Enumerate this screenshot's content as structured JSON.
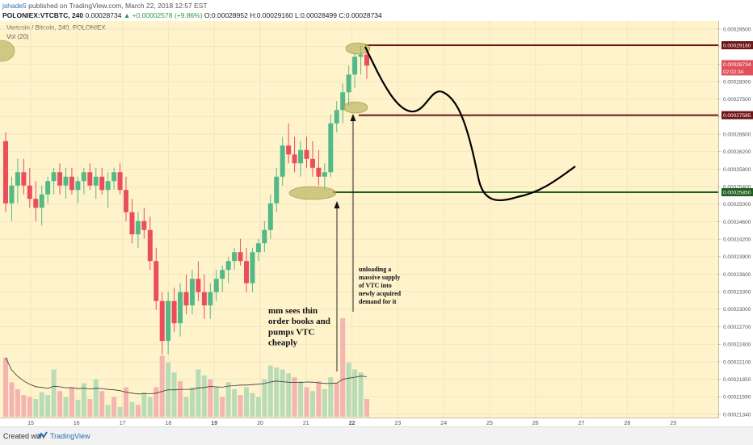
{
  "header": {
    "user": "jshade5",
    "published": "published on TradingView.com, March 22, 2018 12:57 EST",
    "symbol_line": "POLONIEX:VTCBTC, 240",
    "last": "0.00028734",
    "change": "▲ +0.00002578 (+9.86%)",
    "open": "O:0.00028952",
    "high": "H:0.00029160",
    "low": "L:0.00028499",
    "close": "C:0.00028734"
  },
  "pane": {
    "title": "Vertcoin / Bitcoin, 240, POLONIEX",
    "volume_label": "Vol (20)"
  },
  "footer": {
    "created_with": "Created with",
    "brand": "TradingView"
  },
  "chart_data": {
    "type": "candlestick",
    "x_tick_labels": [
      "15",
      "16",
      "17",
      "18",
      "19",
      "20",
      "21",
      "22",
      "23",
      "24",
      "25",
      "26",
      "27",
      "28",
      "29"
    ],
    "bold_x_ticks": [
      "19",
      "22"
    ],
    "y_tick_labels": [
      "0.00029500",
      "0.00029000",
      "0.00028500",
      "0.00028000",
      "0.00027500",
      "0.00027000",
      "0.00026600",
      "0.00026200",
      "0.00025800",
      "0.00025400",
      "0.00025000",
      "0.00024600",
      "0.00024200",
      "0.00023900",
      "0.00023600",
      "0.00023300",
      "0.00023000",
      "0.00022700",
      "0.00022400",
      "0.00022100",
      "0.00021850",
      "0.00021590",
      "0.00021340"
    ],
    "price_tags": [
      {
        "label": "0.00029160",
        "value": 0.0002916,
        "kind": "level",
        "color": "#6e1414"
      },
      {
        "label": "0.00028734",
        "value": 0.00028734,
        "kind": "last",
        "color": "#e0505a"
      },
      {
        "label": "02:02:34",
        "value": 0.0002855,
        "kind": "countdown",
        "color": "#e0505a"
      },
      {
        "label": "0.00027585",
        "value": 0.00027585,
        "kind": "level",
        "color": "#6e1414"
      },
      {
        "label": "0.00025850",
        "value": 0.0002585,
        "kind": "level",
        "color": "#1e5e1e"
      }
    ],
    "horizontal_levels": [
      {
        "value": 0.0002916,
        "color": "#6e1414"
      },
      {
        "value": 0.00027585,
        "color": "#6e1414"
      },
      {
        "value": 0.0002585,
        "color": "#1e5e1e"
      }
    ],
    "candles": [
      {
        "o": 0.00027,
        "h": 0.000272,
        "l": 0.000254,
        "c": 0.000256
      },
      {
        "o": 0.000256,
        "h": 0.000262,
        "l": 0.000252,
        "c": 0.00026
      },
      {
        "o": 0.00026,
        "h": 0.000266,
        "l": 0.000256,
        "c": 0.000263
      },
      {
        "o": 0.000263,
        "h": 0.000266,
        "l": 0.000258,
        "c": 0.00026
      },
      {
        "o": 0.00026,
        "h": 0.000264,
        "l": 0.000255,
        "c": 0.000257
      },
      {
        "o": 0.000257,
        "h": 0.000261,
        "l": 0.000252,
        "c": 0.000255
      },
      {
        "o": 0.000255,
        "h": 0.00026,
        "l": 0.000251,
        "c": 0.000258
      },
      {
        "o": 0.000258,
        "h": 0.000262,
        "l": 0.000256,
        "c": 0.000261
      },
      {
        "o": 0.000261,
        "h": 0.000264,
        "l": 0.000258,
        "c": 0.000263
      },
      {
        "o": 0.000263,
        "h": 0.000265,
        "l": 0.000258,
        "c": 0.00026
      },
      {
        "o": 0.00026,
        "h": 0.000264,
        "l": 0.000257,
        "c": 0.000262
      },
      {
        "o": 0.000262,
        "h": 0.000264,
        "l": 0.000258,
        "c": 0.000259
      },
      {
        "o": 0.000259,
        "h": 0.000262,
        "l": 0.000256,
        "c": 0.000261
      },
      {
        "o": 0.000261,
        "h": 0.000264,
        "l": 0.000258,
        "c": 0.000263
      },
      {
        "o": 0.000263,
        "h": 0.000265,
        "l": 0.000259,
        "c": 0.00026
      },
      {
        "o": 0.00026,
        "h": 0.000264,
        "l": 0.000257,
        "c": 0.000262
      },
      {
        "o": 0.000262,
        "h": 0.000264,
        "l": 0.000258,
        "c": 0.000259
      },
      {
        "o": 0.000259,
        "h": 0.000263,
        "l": 0.000255,
        "c": 0.000261
      },
      {
        "o": 0.000261,
        "h": 0.000264,
        "l": 0.000259,
        "c": 0.000263
      },
      {
        "o": 0.000263,
        "h": 0.000265,
        "l": 0.000258,
        "c": 0.000259
      },
      {
        "o": 0.000259,
        "h": 0.000262,
        "l": 0.000252,
        "c": 0.000254
      },
      {
        "o": 0.000254,
        "h": 0.000257,
        "l": 0.000247,
        "c": 0.000249
      },
      {
        "o": 0.000249,
        "h": 0.000254,
        "l": 0.000246,
        "c": 0.000252
      },
      {
        "o": 0.000252,
        "h": 0.000255,
        "l": 0.000248,
        "c": 0.00025
      },
      {
        "o": 0.00025,
        "h": 0.000253,
        "l": 0.000241,
        "c": 0.000243
      },
      {
        "o": 0.000243,
        "h": 0.000246,
        "l": 0.000232,
        "c": 0.000234
      },
      {
        "o": 0.000234,
        "h": 0.000236,
        "l": 0.000222,
        "c": 0.000225
      },
      {
        "o": 0.000225,
        "h": 0.000236,
        "l": 0.000222,
        "c": 0.000234
      },
      {
        "o": 0.000234,
        "h": 0.000237,
        "l": 0.000227,
        "c": 0.000229
      },
      {
        "o": 0.000229,
        "h": 0.000238,
        "l": 0.000226,
        "c": 0.000236
      },
      {
        "o": 0.000236,
        "h": 0.00024,
        "l": 0.000231,
        "c": 0.000233
      },
      {
        "o": 0.000233,
        "h": 0.000241,
        "l": 0.000231,
        "c": 0.000239
      },
      {
        "o": 0.000239,
        "h": 0.000243,
        "l": 0.000234,
        "c": 0.000236
      },
      {
        "o": 0.000236,
        "h": 0.00024,
        "l": 0.00023,
        "c": 0.000233
      },
      {
        "o": 0.000233,
        "h": 0.000238,
        "l": 0.00023,
        "c": 0.000236
      },
      {
        "o": 0.000236,
        "h": 0.000241,
        "l": 0.000234,
        "c": 0.000239
      },
      {
        "o": 0.000239,
        "h": 0.000242,
        "l": 0.000236,
        "c": 0.000241
      },
      {
        "o": 0.000241,
        "h": 0.000244,
        "l": 0.000238,
        "c": 0.000243
      },
      {
        "o": 0.000243,
        "h": 0.000246,
        "l": 0.000241,
        "c": 0.000245
      },
      {
        "o": 0.000245,
        "h": 0.000248,
        "l": 0.000242,
        "c": 0.000243
      },
      {
        "o": 0.000243,
        "h": 0.000246,
        "l": 0.000236,
        "c": 0.000238
      },
      {
        "o": 0.000238,
        "h": 0.000246,
        "l": 0.000236,
        "c": 0.000245
      },
      {
        "o": 0.000245,
        "h": 0.000248,
        "l": 0.000243,
        "c": 0.000247
      },
      {
        "o": 0.000247,
        "h": 0.000252,
        "l": 0.000245,
        "c": 0.00025
      },
      {
        "o": 0.00025,
        "h": 0.000258,
        "l": 0.000248,
        "c": 0.000256
      },
      {
        "o": 0.000256,
        "h": 0.000264,
        "l": 0.000254,
        "c": 0.000262
      },
      {
        "o": 0.000262,
        "h": 0.000271,
        "l": 0.00026,
        "c": 0.000269
      },
      {
        "o": 0.000269,
        "h": 0.000274,
        "l": 0.000265,
        "c": 0.000267
      },
      {
        "o": 0.000267,
        "h": 0.000271,
        "l": 0.000263,
        "c": 0.000265
      },
      {
        "o": 0.000265,
        "h": 0.00027,
        "l": 0.000262,
        "c": 0.000268
      },
      {
        "o": 0.000268,
        "h": 0.000271,
        "l": 0.000264,
        "c": 0.000266
      },
      {
        "o": 0.000266,
        "h": 0.00027,
        "l": 0.000262,
        "c": 0.000264
      },
      {
        "o": 0.000264,
        "h": 0.000268,
        "l": 0.00026,
        "c": 0.000262
      },
      {
        "o": 0.000262,
        "h": 0.000265,
        "l": 0.000259,
        "c": 0.000263
      },
      {
        "o": 0.000263,
        "h": 0.000276,
        "l": 0.000262,
        "c": 0.000274
      },
      {
        "o": 0.000274,
        "h": 0.000279,
        "l": 0.000272,
        "c": 0.000277
      },
      {
        "o": 0.000277,
        "h": 0.000283,
        "l": 0.000274,
        "c": 0.000281
      },
      {
        "o": 0.000281,
        "h": 0.000287,
        "l": 0.000278,
        "c": 0.000285
      },
      {
        "o": 0.000285,
        "h": 0.00029,
        "l": 0.000282,
        "c": 0.000289
      },
      {
        "o": 0.000289,
        "h": 0.0002916,
        "l": 0.000285,
        "c": 0.0002895
      },
      {
        "o": 0.0002895,
        "h": 0.000291,
        "l": 0.000284,
        "c": 0.000287
      }
    ],
    "volume": [
      {
        "v": 0.6,
        "up": false
      },
      {
        "v": 0.35,
        "up": false
      },
      {
        "v": 0.28,
        "up": false
      },
      {
        "v": 0.22,
        "up": false
      },
      {
        "v": 0.2,
        "up": false
      },
      {
        "v": 0.18,
        "up": true
      },
      {
        "v": 0.25,
        "up": true
      },
      {
        "v": 0.22,
        "up": true
      },
      {
        "v": 0.48,
        "up": true
      },
      {
        "v": 0.26,
        "up": false
      },
      {
        "v": 0.2,
        "up": true
      },
      {
        "v": 0.3,
        "up": false
      },
      {
        "v": 0.17,
        "up": true
      },
      {
        "v": 0.34,
        "up": true
      },
      {
        "v": 0.18,
        "up": false
      },
      {
        "v": 0.38,
        "up": true
      },
      {
        "v": 0.26,
        "up": false
      },
      {
        "v": 0.12,
        "up": true
      },
      {
        "v": 0.2,
        "up": false
      },
      {
        "v": 0.1,
        "up": true
      },
      {
        "v": 0.3,
        "up": false
      },
      {
        "v": 0.15,
        "up": true
      },
      {
        "v": 0.12,
        "up": false
      },
      {
        "v": 0.25,
        "up": true
      },
      {
        "v": 0.2,
        "up": true
      },
      {
        "v": 0.3,
        "up": false
      },
      {
        "v": 0.62,
        "up": false
      },
      {
        "v": 0.55,
        "up": true
      },
      {
        "v": 0.45,
        "up": true
      },
      {
        "v": 0.36,
        "up": false
      },
      {
        "v": 0.2,
        "up": true
      },
      {
        "v": 0.3,
        "up": true
      },
      {
        "v": 0.48,
        "up": true
      },
      {
        "v": 0.42,
        "up": true
      },
      {
        "v": 0.38,
        "up": false
      },
      {
        "v": 0.3,
        "up": true
      },
      {
        "v": 0.2,
        "up": false
      },
      {
        "v": 0.35,
        "up": true
      },
      {
        "v": 0.28,
        "up": true
      },
      {
        "v": 0.22,
        "up": false
      },
      {
        "v": 0.3,
        "up": true
      },
      {
        "v": 0.24,
        "up": true
      },
      {
        "v": 0.2,
        "up": true
      },
      {
        "v": 0.38,
        "up": true
      },
      {
        "v": 0.52,
        "up": true
      },
      {
        "v": 0.5,
        "up": true
      },
      {
        "v": 0.48,
        "up": true
      },
      {
        "v": 0.44,
        "up": true
      },
      {
        "v": 0.4,
        "up": false
      },
      {
        "v": 0.36,
        "up": true
      },
      {
        "v": 0.3,
        "up": false
      },
      {
        "v": 0.26,
        "up": true
      },
      {
        "v": 0.36,
        "up": false
      },
      {
        "v": 0.28,
        "up": true
      },
      {
        "v": 0.4,
        "up": true
      },
      {
        "v": 0.35,
        "up": false
      },
      {
        "v": 1.0,
        "up": false
      },
      {
        "v": 0.55,
        "up": true
      },
      {
        "v": 0.48,
        "up": true
      },
      {
        "v": 0.45,
        "up": true
      },
      {
        "v": 0.18,
        "up": false
      }
    ],
    "annotations": [
      {
        "lines": [
          "mm sees thin",
          "order books and",
          "pumps VTC",
          "cheaply"
        ],
        "size": "large"
      },
      {
        "lines": [
          "unloading a",
          "massive supply",
          "of VTC into",
          "newly acquired",
          "demand for it"
        ],
        "size": "small"
      }
    ],
    "colors": {
      "up": "#53b987",
      "down": "#eb4d5c",
      "background": "#fff3cc",
      "volume_up": "#b9dcb7",
      "volume_down": "#f4b4b0",
      "ellipse": "#b5b15a"
    }
  }
}
